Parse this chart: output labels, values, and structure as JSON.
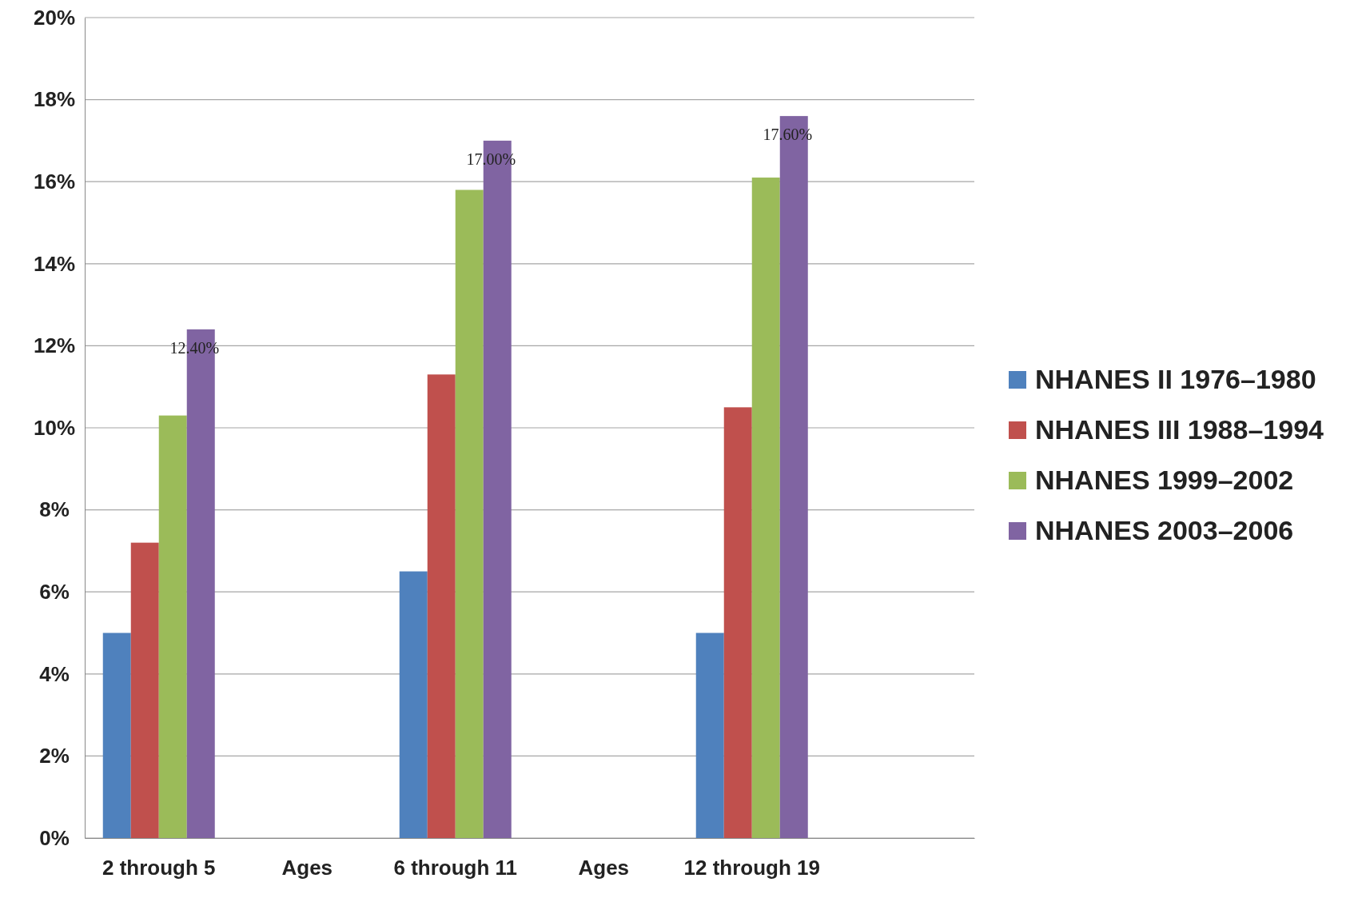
{
  "chart_data": {
    "type": "bar",
    "categories": [
      "2 through 5",
      "Ages",
      "6 through 11",
      "Ages",
      "12 through 19",
      null
    ],
    "series": [
      {
        "name": "NHANES II 1976–1980",
        "color": "#4f81bd",
        "values": [
          5,
          null,
          6.5,
          null,
          5,
          null
        ]
      },
      {
        "name": "NHANES III 1988–1994",
        "color": "#c0504d",
        "values": [
          7.2,
          null,
          11.3,
          null,
          10.5,
          null
        ]
      },
      {
        "name": "NHANES 1999–2002",
        "color": "#9bbb59",
        "values": [
          10.3,
          null,
          15.8,
          null,
          16.1,
          null
        ]
      },
      {
        "name": "NHANES 2003–2006",
        "color": "#8064a2",
        "values": [
          12.4,
          null,
          17.0,
          null,
          17.6,
          null
        ],
        "value_labels": [
          "12.40%",
          null,
          "17.00%",
          null,
          "17.60%",
          null
        ]
      }
    ],
    "ylim": [
      0,
      20
    ],
    "yticks": [
      {
        "value": 0,
        "label": "0%"
      },
      {
        "value": 2,
        "label": "2%"
      },
      {
        "value": 4,
        "label": "4%"
      },
      {
        "value": 6,
        "label": "6%"
      },
      {
        "value": 8,
        "label": "8%"
      },
      {
        "value": 10,
        "label": "10%"
      },
      {
        "value": 12,
        "label": "12%"
      },
      {
        "value": 14,
        "label": "14%"
      },
      {
        "value": 16,
        "label": "16%"
      },
      {
        "value": 18,
        "label": "18%"
      },
      {
        "value": 20,
        "label": "20%"
      }
    ],
    "grid": "y",
    "legend": "right"
  }
}
